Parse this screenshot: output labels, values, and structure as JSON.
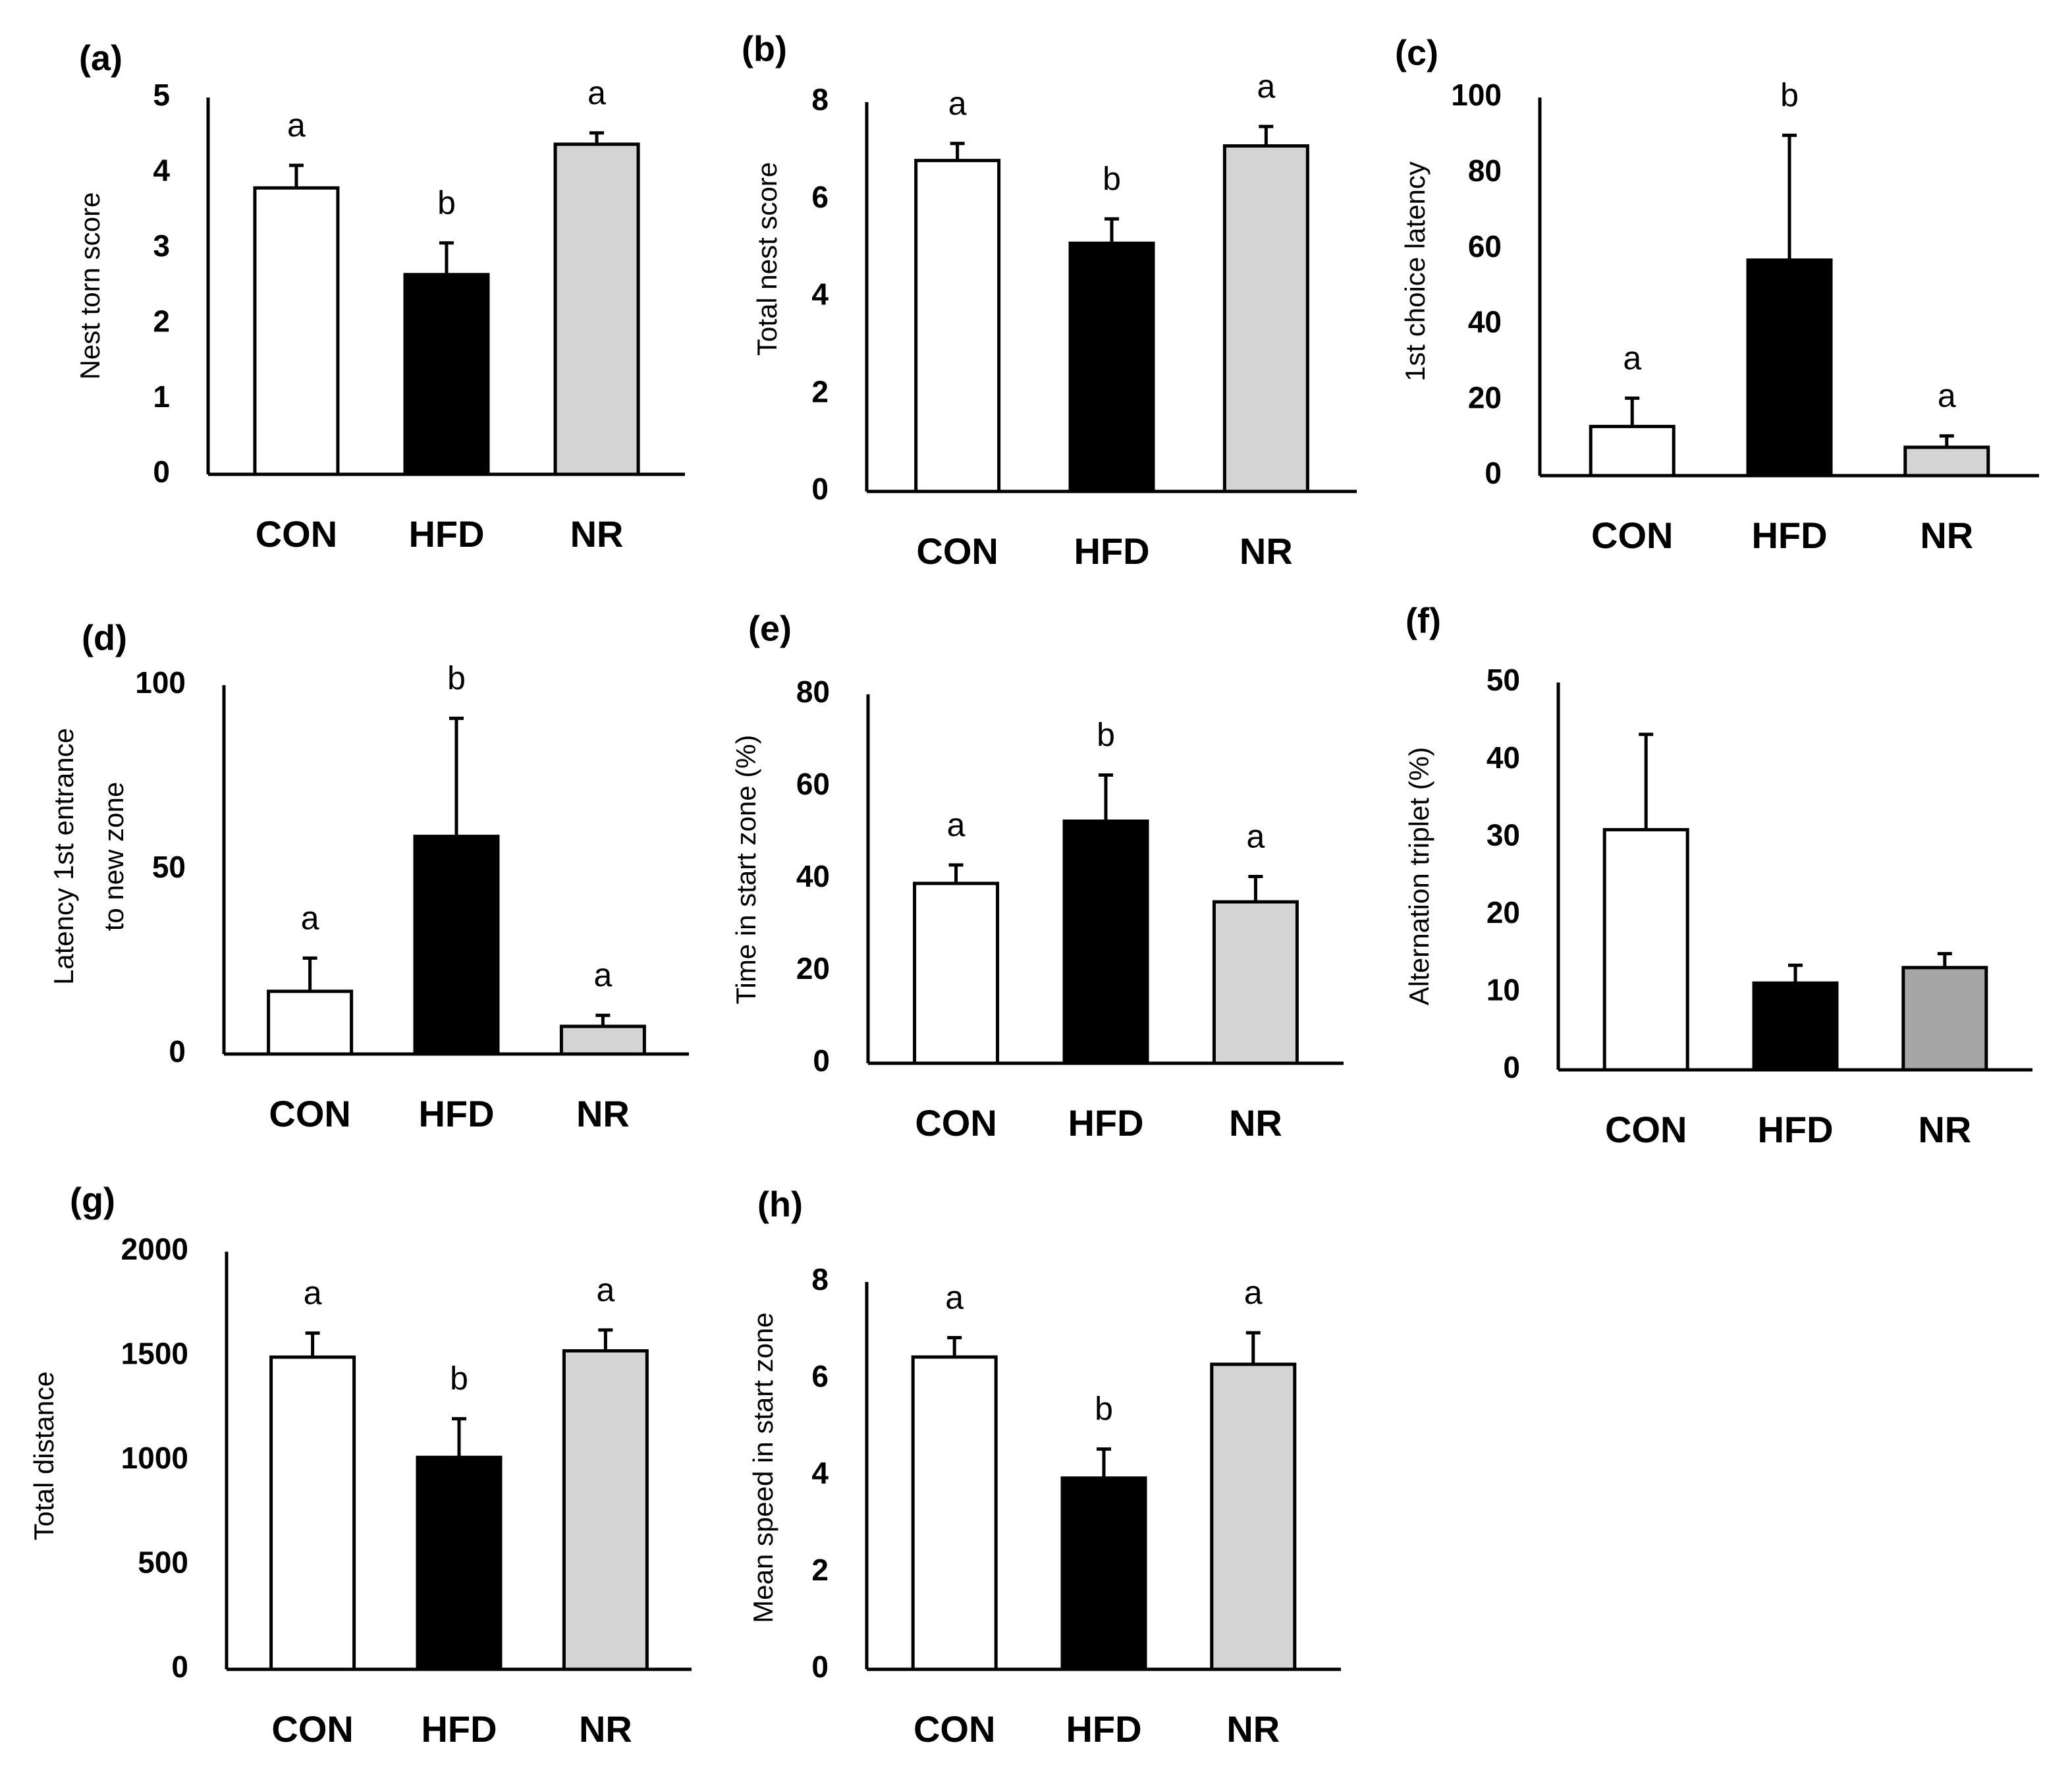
{
  "colors": {
    "CON": "#ffffff",
    "HFD": "#000000",
    "NR": "#d4d4d4",
    "NR_f": "#a6a6a6",
    "axis": "#000000"
  },
  "chart_data": [
    {
      "id": "a",
      "type": "bar",
      "panel_label": "(a)",
      "ylabel": [
        "Nest torn score"
      ],
      "categories": [
        "CON",
        "HFD",
        "NR"
      ],
      "values": [
        3.8,
        2.65,
        4.38
      ],
      "errors": [
        0.3,
        0.42,
        0.15
      ],
      "letters": [
        "a",
        "b",
        "a"
      ],
      "ylim": [
        0,
        5
      ],
      "yticks": [
        0,
        1,
        2,
        3,
        4,
        5
      ],
      "tick_labels": [
        "0",
        "1",
        "2",
        "3",
        "4",
        "5"
      ]
    },
    {
      "id": "b",
      "type": "bar",
      "panel_label": "(b)",
      "ylabel": [
        "Total nest score"
      ],
      "categories": [
        "CON",
        "HFD",
        "NR"
      ],
      "values": [
        6.8,
        5.1,
        7.1
      ],
      "errors": [
        0.35,
        0.5,
        0.4
      ],
      "letters": [
        "a",
        "b",
        "a"
      ],
      "ylim": [
        0,
        8
      ],
      "yticks": [
        0,
        2,
        4,
        6,
        8
      ],
      "tick_labels": [
        "0",
        "2",
        "4",
        "6",
        "8"
      ]
    },
    {
      "id": "c",
      "type": "bar",
      "panel_label": "(c)",
      "ylabel": [
        "1st choice latency"
      ],
      "categories": [
        "CON",
        "HFD",
        "NR"
      ],
      "values": [
        13,
        57,
        7.5
      ],
      "errors": [
        7.5,
        33,
        3
      ],
      "letters": [
        "a",
        "b",
        "a"
      ],
      "ylim": [
        0,
        100
      ],
      "yticks": [
        0,
        20,
        40,
        60,
        80,
        100
      ],
      "tick_labels": [
        "0",
        "20",
        "40",
        "60",
        "80",
        "100"
      ]
    },
    {
      "id": "d",
      "type": "bar",
      "panel_label": "(d)",
      "ylabel": [
        "Latency 1st entrance",
        "to new zone"
      ],
      "categories": [
        "CON",
        "HFD",
        "NR"
      ],
      "values": [
        17,
        59,
        7.5
      ],
      "errors": [
        9,
        32,
        3
      ],
      "letters": [
        "a",
        "b",
        "a"
      ],
      "ylim": [
        0,
        100
      ],
      "yticks": [
        0,
        50,
        100
      ],
      "tick_labels": [
        "0",
        "50",
        "100"
      ]
    },
    {
      "id": "e",
      "type": "bar",
      "panel_label": "(e)",
      "ylabel": [
        "Time in start zone (%)"
      ],
      "categories": [
        "CON",
        "HFD",
        "NR"
      ],
      "values": [
        39,
        52.5,
        35
      ],
      "errors": [
        4,
        10,
        5.5
      ],
      "letters": [
        "a",
        "b",
        "a"
      ],
      "ylim": [
        0,
        80
      ],
      "yticks": [
        0,
        20,
        40,
        60,
        80
      ],
      "tick_labels": [
        "0",
        "20",
        "40",
        "60",
        "80"
      ]
    },
    {
      "id": "f",
      "type": "bar",
      "panel_label": "(f)",
      "ylabel": [
        "Alternation triplet (%)"
      ],
      "categories": [
        "CON",
        "HFD",
        "NR"
      ],
      "values": [
        31,
        11.2,
        13.2
      ],
      "errors": [
        12.3,
        2.3,
        1.8
      ],
      "letters": [
        "",
        "",
        ""
      ],
      "ylim": [
        0,
        50
      ],
      "yticks": [
        0,
        10,
        20,
        30,
        40,
        50
      ],
      "tick_labels": [
        "0",
        "10",
        "20",
        "30",
        "40",
        "50"
      ]
    },
    {
      "id": "g",
      "type": "bar",
      "panel_label": "(g)",
      "ylabel": [
        "Total distance"
      ],
      "categories": [
        "CON",
        "HFD",
        "NR"
      ],
      "values": [
        1495,
        1015,
        1525
      ],
      "errors": [
        115,
        185,
        100
      ],
      "letters": [
        "a",
        "b",
        "a"
      ],
      "ylim": [
        0,
        2000
      ],
      "yticks": [
        0,
        500,
        1000,
        1500,
        2000
      ],
      "tick_labels": [
        "0",
        "500",
        "1000",
        "1500",
        "2000"
      ]
    },
    {
      "id": "h",
      "type": "bar",
      "panel_label": "(h)",
      "ylabel": [
        "Mean speed in start zone"
      ],
      "categories": [
        "CON",
        "HFD",
        "NR"
      ],
      "values": [
        6.45,
        3.95,
        6.3
      ],
      "errors": [
        0.4,
        0.6,
        0.65
      ],
      "letters": [
        "a",
        "b",
        "a"
      ],
      "ylim": [
        0,
        8
      ],
      "yticks": [
        0,
        2,
        4,
        6,
        8
      ],
      "tick_labels": [
        "0",
        "2",
        "4",
        "6",
        "8"
      ]
    }
  ]
}
